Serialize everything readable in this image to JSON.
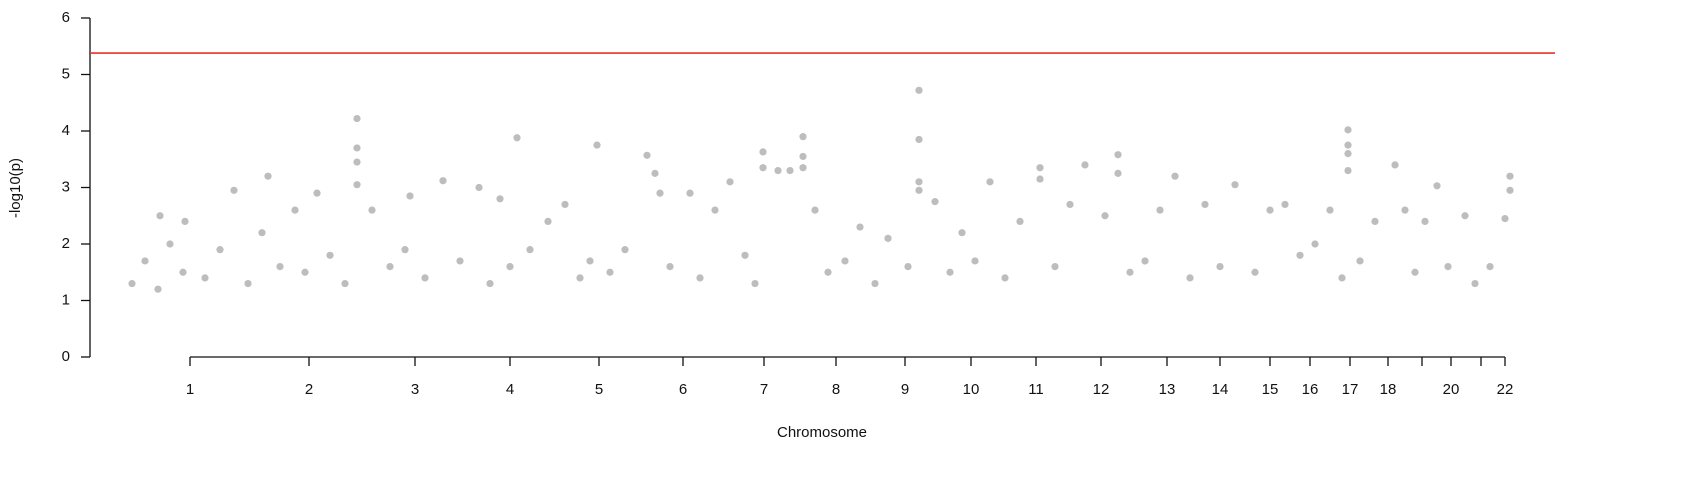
{
  "chart_data": {
    "type": "scatter",
    "xlabel": "Chromosome",
    "ylabel": "-log10(p)",
    "color": "#bdbdbd",
    "threshold": 5.38,
    "threshold_color": "#e8302a",
    "xlim": [
      90,
      1555
    ],
    "ylim": [
      0,
      6
    ],
    "yticks": [
      0,
      1,
      2,
      3,
      4,
      5,
      6
    ],
    "xticks": [
      {
        "value": 190,
        "label": "1"
      },
      {
        "value": 309,
        "label": "2"
      },
      {
        "value": 415,
        "label": "3"
      },
      {
        "value": 510,
        "label": "4"
      },
      {
        "value": 599,
        "label": "5"
      },
      {
        "value": 683,
        "label": "6"
      },
      {
        "value": 764,
        "label": "7"
      },
      {
        "value": 836,
        "label": "8"
      },
      {
        "value": 905,
        "label": "9"
      },
      {
        "value": 971,
        "label": "10"
      },
      {
        "value": 1036,
        "label": "11"
      },
      {
        "value": 1101,
        "label": "12"
      },
      {
        "value": 1167,
        "label": "13"
      },
      {
        "value": 1220,
        "label": "14"
      },
      {
        "value": 1270,
        "label": "15"
      },
      {
        "value": 1310,
        "label": "16"
      },
      {
        "value": 1350,
        "label": "17"
      },
      {
        "value": 1388,
        "label": "18"
      },
      {
        "value": 1422,
        "label": null
      },
      {
        "value": 1451,
        "label": "20"
      },
      {
        "value": 1481,
        "label": null
      },
      {
        "value": 1505,
        "label": "22"
      }
    ],
    "x": [
      132,
      145,
      158,
      170,
      183,
      160,
      185,
      205,
      220,
      234,
      248,
      262,
      268,
      280,
      295,
      305,
      317,
      330,
      345,
      357,
      357,
      357,
      357,
      372,
      390,
      405,
      410,
      425,
      443,
      460,
      479,
      490,
      500,
      510,
      517,
      530,
      548,
      565,
      580,
      590,
      597,
      610,
      625,
      647,
      655,
      660,
      670,
      690,
      700,
      715,
      730,
      745,
      755,
      763,
      763,
      778,
      790,
      803,
      803,
      803,
      815,
      828,
      845,
      860,
      875,
      888,
      908,
      919,
      919,
      919,
      919,
      935,
      950,
      962,
      975,
      990,
      1005,
      1020,
      1040,
      1040,
      1055,
      1070,
      1085,
      1105,
      1118,
      1118,
      1130,
      1145,
      1160,
      1175,
      1190,
      1205,
      1220,
      1235,
      1255,
      1270,
      1285,
      1300,
      1315,
      1330,
      1342,
      1348,
      1348,
      1348,
      1348,
      1360,
      1375,
      1395,
      1405,
      1415,
      1425,
      1437,
      1448,
      1465,
      1475,
      1490,
      1510,
      1510,
      1505
    ],
    "values": [
      1.3,
      1.7,
      1.2,
      2.0,
      1.5,
      2.5,
      2.4,
      1.4,
      1.9,
      2.95,
      1.3,
      2.2,
      3.2,
      1.6,
      2.6,
      1.5,
      2.9,
      1.8,
      1.3,
      4.22,
      3.7,
      3.45,
      3.05,
      2.6,
      1.6,
      1.9,
      2.85,
      1.4,
      3.12,
      1.7,
      3.0,
      1.3,
      2.8,
      1.6,
      3.88,
      1.9,
      2.4,
      2.7,
      1.4,
      1.7,
      3.75,
      1.5,
      1.9,
      3.57,
      3.25,
      2.9,
      1.6,
      2.9,
      1.4,
      2.6,
      3.1,
      1.8,
      1.3,
      3.63,
      3.35,
      3.3,
      3.3,
      3.9,
      3.55,
      3.35,
      2.6,
      1.5,
      1.7,
      2.3,
      1.3,
      2.1,
      1.6,
      4.72,
      3.85,
      3.1,
      2.95,
      2.75,
      1.5,
      2.2,
      1.7,
      3.1,
      1.4,
      2.4,
      3.35,
      3.15,
      1.6,
      2.7,
      3.4,
      2.5,
      3.58,
      3.25,
      1.5,
      1.7,
      2.6,
      3.2,
      1.4,
      2.7,
      1.6,
      3.05,
      1.5,
      2.6,
      2.7,
      1.8,
      2.0,
      2.6,
      1.4,
      4.02,
      3.75,
      3.6,
      3.3,
      1.7,
      2.4,
      3.4,
      2.6,
      1.5,
      2.4,
      3.03,
      1.6,
      2.5,
      1.3,
      1.6,
      3.2,
      2.95,
      2.45
    ]
  }
}
